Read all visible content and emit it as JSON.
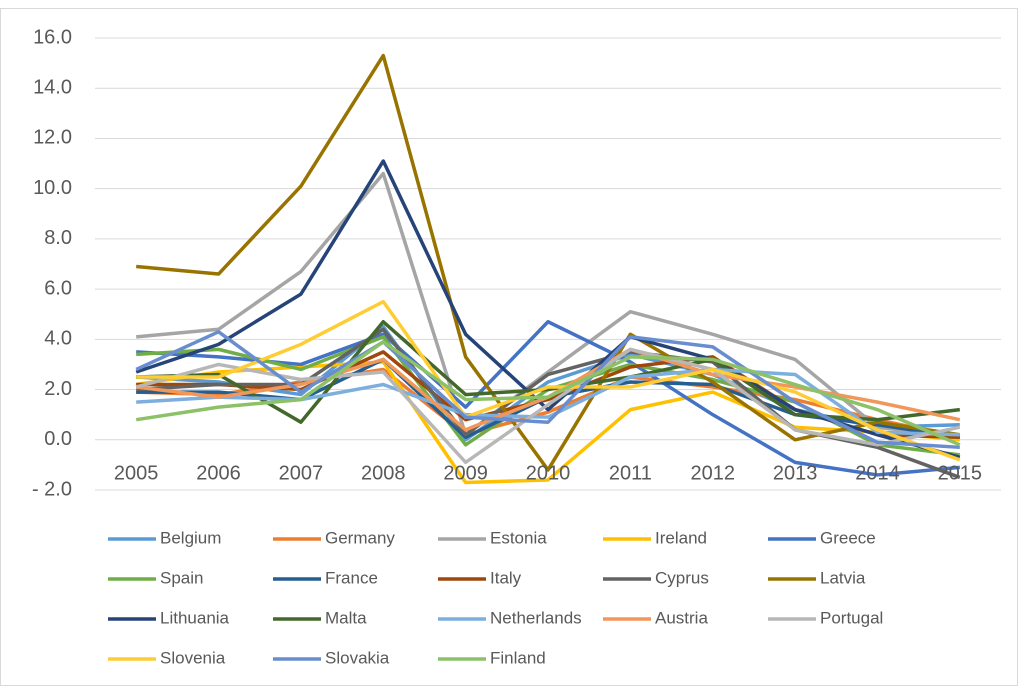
{
  "chart_data": {
    "type": "line",
    "categories": [
      "2005",
      "2006",
      "2007",
      "2008",
      "2009",
      "2010",
      "2011",
      "2012",
      "2013",
      "2014",
      "2015"
    ],
    "ylim": [
      -2,
      16
    ],
    "yticks": [
      {
        "value": -2,
        "label": "- 2.0"
      },
      {
        "value": 0,
        "label": "0.0"
      },
      {
        "value": 2,
        "label": "2.0"
      },
      {
        "value": 4,
        "label": "4.0"
      },
      {
        "value": 6,
        "label": "6.0"
      },
      {
        "value": 8,
        "label": "8.0"
      },
      {
        "value": 10,
        "label": "10.0"
      },
      {
        "value": 12,
        "label": "12.0"
      },
      {
        "value": 14,
        "label": "14.0"
      },
      {
        "value": 16,
        "label": "16.0"
      }
    ],
    "grid": true,
    "legend": "bottom",
    "series": [
      {
        "name": "Belgium",
        "color": "#5B9BD5",
        "values": [
          2.5,
          2.3,
          1.8,
          4.5,
          0.0,
          2.3,
          3.4,
          2.6,
          1.2,
          0.5,
          0.6
        ]
      },
      {
        "name": "Germany",
        "color": "#ED7D31",
        "values": [
          1.9,
          1.8,
          2.3,
          2.8,
          0.2,
          1.1,
          2.5,
          2.1,
          1.6,
          0.8,
          0.1
        ]
      },
      {
        "name": "Estonia",
        "color": "#A5A5A5",
        "values": [
          4.1,
          4.4,
          6.7,
          10.6,
          0.2,
          2.7,
          5.1,
          4.2,
          3.2,
          0.5,
          0.1
        ]
      },
      {
        "name": "Ireland",
        "color": "#FFC000",
        "values": [
          2.2,
          2.7,
          2.9,
          3.1,
          -1.7,
          -1.6,
          1.2,
          1.9,
          0.5,
          0.3,
          0.0
        ]
      },
      {
        "name": "Greece",
        "color": "#4472C4",
        "values": [
          3.5,
          3.3,
          3.0,
          4.2,
          1.3,
          4.7,
          3.1,
          1.0,
          -0.9,
          -1.4,
          -1.1
        ]
      },
      {
        "name": "Spain",
        "color": "#70AD47",
        "values": [
          3.4,
          3.6,
          2.8,
          4.1,
          -0.2,
          2.0,
          3.0,
          2.4,
          1.5,
          -0.2,
          -0.6
        ]
      },
      {
        "name": "France",
        "color": "#255E91",
        "values": [
          1.9,
          1.9,
          1.6,
          3.2,
          0.1,
          1.7,
          2.3,
          2.2,
          1.0,
          0.6,
          0.1
        ]
      },
      {
        "name": "Italy",
        "color": "#9E480E",
        "values": [
          2.2,
          2.2,
          2.0,
          3.5,
          0.8,
          1.6,
          2.9,
          3.3,
          1.2,
          0.2,
          0.1
        ]
      },
      {
        "name": "Cyprus",
        "color": "#636363",
        "values": [
          2.0,
          2.2,
          2.2,
          4.4,
          0.2,
          2.6,
          3.5,
          3.1,
          0.4,
          -0.3,
          -1.5
        ]
      },
      {
        "name": "Latvia",
        "color": "#997300",
        "values": [
          6.9,
          6.6,
          10.1,
          15.3,
          3.3,
          -1.2,
          4.2,
          2.3,
          0.0,
          0.7,
          0.2
        ]
      },
      {
        "name": "Lithuania",
        "color": "#264478",
        "values": [
          2.7,
          3.8,
          5.8,
          11.1,
          4.2,
          1.2,
          4.1,
          3.2,
          1.2,
          0.2,
          -0.7
        ]
      },
      {
        "name": "Malta",
        "color": "#43682B",
        "values": [
          2.5,
          2.6,
          0.7,
          4.7,
          1.8,
          2.0,
          2.5,
          3.2,
          1.0,
          0.8,
          1.2
        ]
      },
      {
        "name": "Netherlands",
        "color": "#7CAFDD",
        "values": [
          1.5,
          1.7,
          1.6,
          2.2,
          1.0,
          0.9,
          2.5,
          2.8,
          2.6,
          0.3,
          0.2
        ]
      },
      {
        "name": "Austria",
        "color": "#F1975A",
        "values": [
          2.1,
          1.7,
          2.2,
          3.2,
          0.4,
          1.7,
          3.6,
          2.6,
          2.1,
          1.5,
          0.8
        ]
      },
      {
        "name": "Portugal",
        "color": "#B7B7B7",
        "values": [
          2.1,
          3.0,
          2.4,
          2.7,
          -0.9,
          1.4,
          3.6,
          2.8,
          0.4,
          -0.2,
          0.5
        ]
      },
      {
        "name": "Slovenia",
        "color": "#FFCD33",
        "values": [
          2.5,
          2.5,
          3.8,
          5.5,
          0.9,
          2.1,
          2.1,
          2.8,
          1.9,
          0.4,
          -0.8
        ]
      },
      {
        "name": "Slovakia",
        "color": "#698ED0",
        "values": [
          2.8,
          4.3,
          1.9,
          3.9,
          0.9,
          0.7,
          4.1,
          3.7,
          1.5,
          -0.1,
          -0.3
        ]
      },
      {
        "name": "Finland",
        "color": "#8CC168",
        "values": [
          0.8,
          1.3,
          1.6,
          3.9,
          1.6,
          1.7,
          3.3,
          3.2,
          2.2,
          1.2,
          -0.2
        ]
      }
    ]
  }
}
